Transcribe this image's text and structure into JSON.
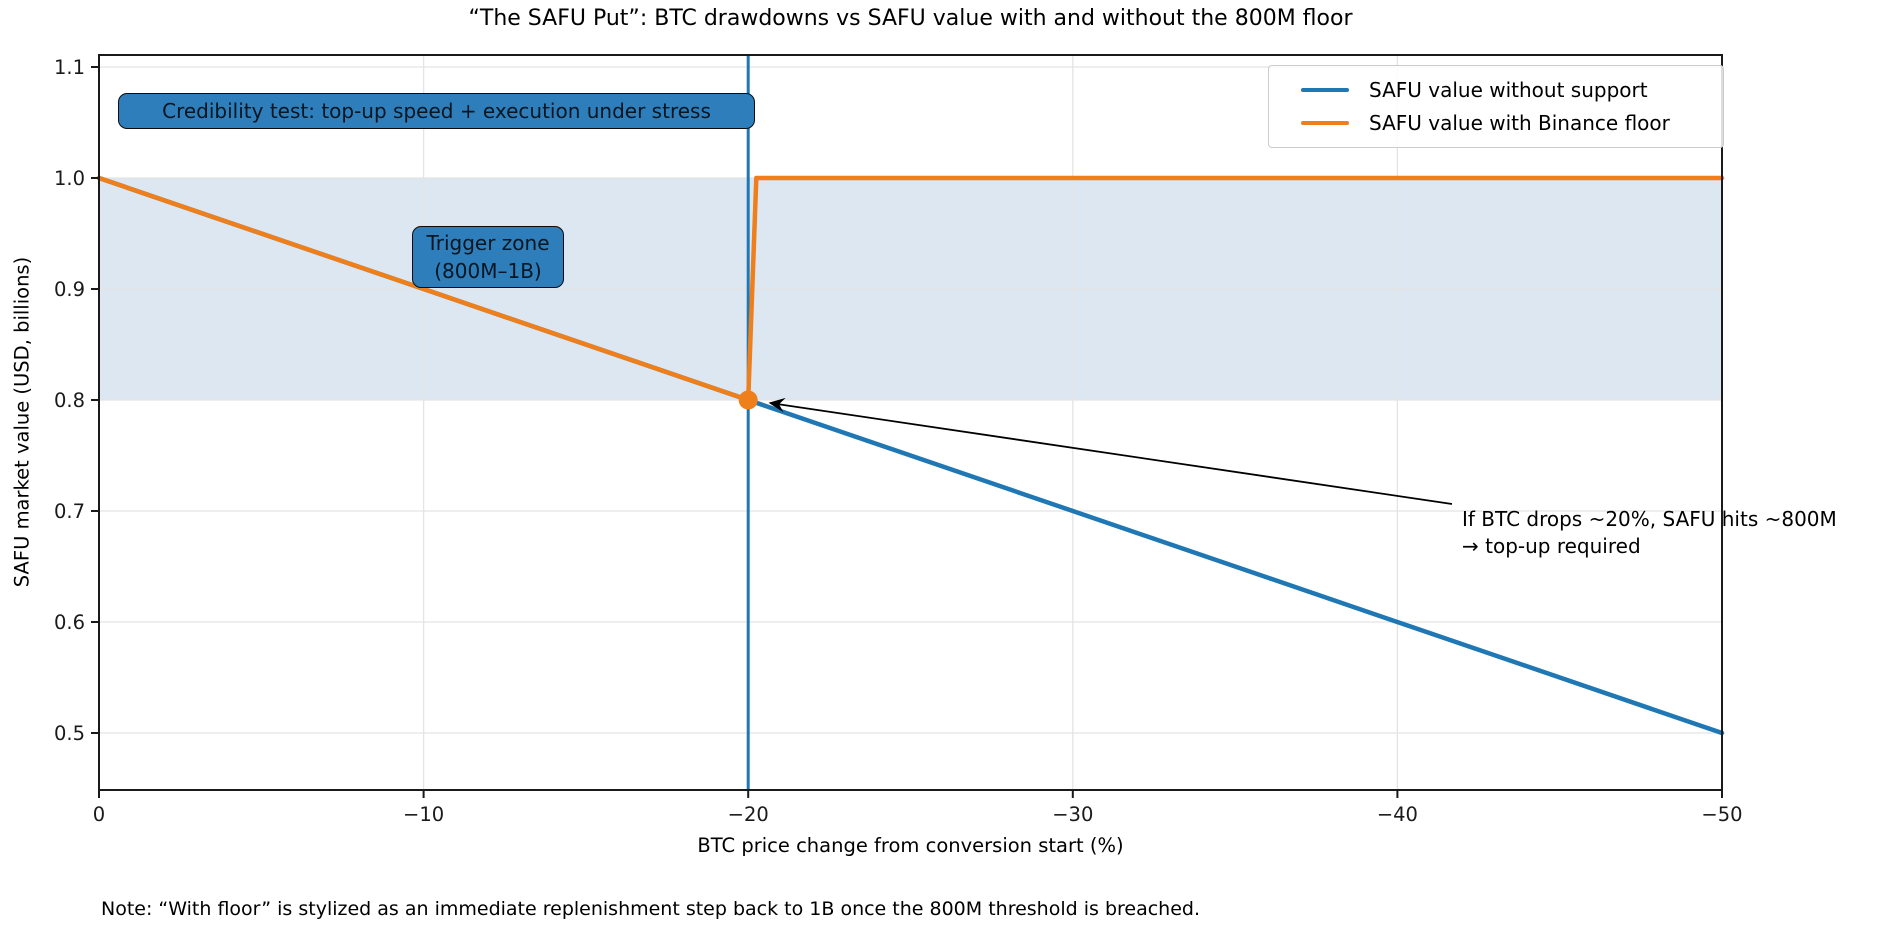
{
  "note": "Note: “With floor” is stylized as an immediate replenishment step back to 1B once the 800M threshold is breached.",
  "colors": {
    "blue_series": "#1f77b4",
    "orange_series": "#ef7f1a",
    "annotation_box_fill": "#2e7ebc",
    "trigger_band_fill": "#dce7f2",
    "grid": "#e4e4e4",
    "spine": "#1a1a1a",
    "arrow": "#000000"
  },
  "annotations": {
    "credibility": "Credibility test: top-up speed + execution under stress",
    "trigger_line1": "Trigger zone",
    "trigger_line2": "(800M–1B)",
    "arrow_line1": "If BTC drops ~20%, SAFU hits ~800M",
    "arrow_line2": "→ top-up required"
  },
  "chart_data": {
    "type": "line",
    "title": "“The SAFU Put”: BTC drawdowns vs SAFU value with and without the 800M floor",
    "xlabel": "BTC price change from conversion start (%)",
    "ylabel": "SAFU market value (USD, billions)",
    "xlim": [
      0,
      -50
    ],
    "ylim": [
      0.449,
      1.111
    ],
    "grid": true,
    "x_ticks": {
      "values": [
        0,
        -10,
        -20,
        -30,
        -40,
        -50
      ],
      "labels": [
        "0",
        "−10",
        "−20",
        "−30",
        "−40",
        "−50"
      ]
    },
    "y_ticks": {
      "values": [
        1.1,
        1.0,
        0.9,
        0.8,
        0.7,
        0.6,
        0.5
      ],
      "labels": [
        "1.1",
        "1.0",
        "0.9",
        "0.8",
        "0.7",
        "0.6",
        "0.5"
      ]
    },
    "series": [
      {
        "name": "SAFU value without support",
        "color": "#1f77b4",
        "points": [
          [
            0,
            1.0
          ],
          [
            -50,
            0.5
          ]
        ]
      },
      {
        "name": "SAFU value with Binance floor",
        "color": "#ef7f1a",
        "points": [
          [
            0,
            1.0
          ],
          [
            -20,
            0.8
          ],
          [
            -20.25,
            1.0
          ],
          [
            -50,
            1.0
          ]
        ]
      }
    ],
    "vline": {
      "x": -20,
      "color": "#1f77b4"
    },
    "marker": {
      "x": -20,
      "y": 0.8,
      "color": "#ef7f1a"
    },
    "band": {
      "y0": 0.8,
      "y1": 1.0,
      "label": "Trigger zone (800M–1B)"
    },
    "legend": {
      "position": "upper right"
    }
  }
}
